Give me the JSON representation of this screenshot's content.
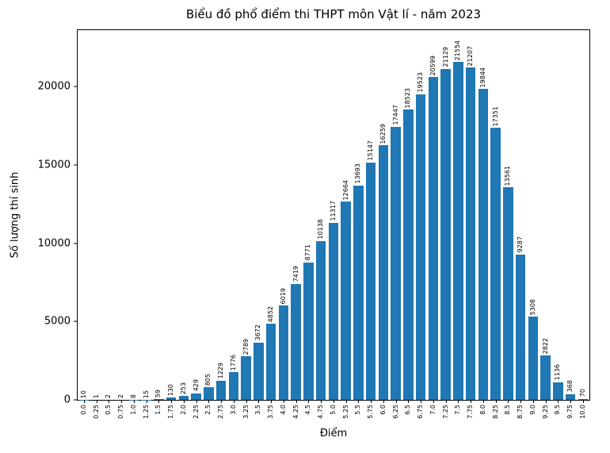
{
  "chart_data": {
    "type": "bar",
    "title": "Biểu đồ phổ điểm thi THPT môn Vật lí - năm 2023",
    "xlabel": "Điểm",
    "ylabel": "Số lượng thí sinh",
    "categories": [
      "0.0",
      "0.25",
      "0.5",
      "0.75",
      "1.0",
      "1.25",
      "1.5",
      "1.75",
      "2.0",
      "2.25",
      "2.5",
      "2.75",
      "3.0",
      "3.25",
      "3.5",
      "3.75",
      "4.0",
      "4.25",
      "4.5",
      "4.75",
      "5.0",
      "5.25",
      "5.5",
      "5.75",
      "6.0",
      "6.25",
      "6.5",
      "6.75",
      "7.0",
      "7.25",
      "7.5",
      "7.75",
      "8.0",
      "8.25",
      "8.5",
      "8.75",
      "9.0",
      "9.25",
      "9.5",
      "9.75",
      "10.0"
    ],
    "values": [
      10,
      1,
      2,
      2,
      8,
      15,
      59,
      130,
      253,
      429,
      805,
      1229,
      1776,
      2789,
      3672,
      4852,
      6019,
      7419,
      8771,
      10138,
      11317,
      12664,
      13693,
      15147,
      16259,
      17447,
      18523,
      19523,
      20599,
      21129,
      21554,
      21207,
      19844,
      17351,
      13561,
      9287,
      5308,
      2822,
      1136,
      368,
      70
    ],
    "value_labels_rotation": 90,
    "yticks": [
      0,
      5000,
      10000,
      15000,
      20000
    ],
    "ylim": [
      0,
      23600
    ],
    "grid": false,
    "legend": "none",
    "bar_color": "#1f77b4",
    "spine_color": "#000000",
    "background_color": "#ffffff"
  }
}
